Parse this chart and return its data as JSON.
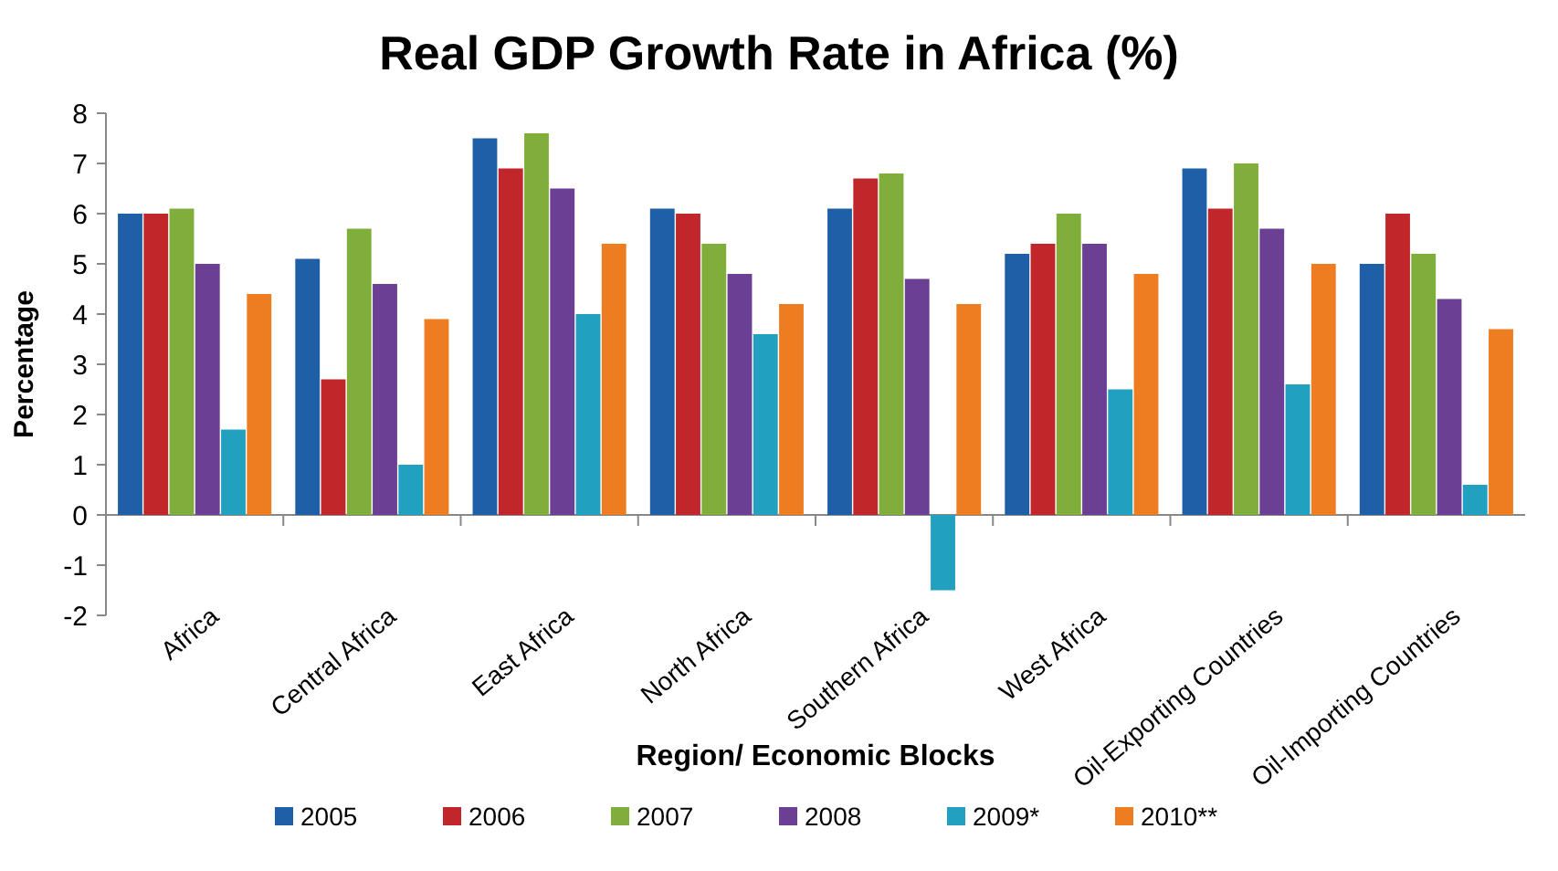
{
  "chart_data": {
    "type": "bar",
    "title": "Real GDP Growth Rate in Africa (%)",
    "xlabel": "Region/ Economic Blocks",
    "ylabel": "Percentage",
    "categories": [
      "Africa",
      "Central Africa",
      "East Africa",
      "North Africa",
      "Southern Africa",
      "West Africa",
      "Oil-Exporting Countries",
      "Oil-Importing Countries"
    ],
    "series": [
      {
        "name": "2005",
        "color": "#1f5fa8",
        "values": [
          6,
          5.1,
          7.5,
          6.1,
          6.1,
          5.2,
          6.9,
          5
        ]
      },
      {
        "name": "2006",
        "color": "#c0262a",
        "values": [
          6,
          2.7,
          6.9,
          6,
          6.7,
          5.4,
          6.1,
          6
        ]
      },
      {
        "name": "2007",
        "color": "#7fae3a",
        "values": [
          6.1,
          5.7,
          7.6,
          5.4,
          6.8,
          6,
          7,
          5.2
        ]
      },
      {
        "name": "2008",
        "color": "#6a3f94",
        "values": [
          5,
          4.6,
          6.5,
          4.8,
          4.7,
          5.4,
          5.7,
          4.3
        ]
      },
      {
        "name": "2009*",
        "color": "#22a0c0",
        "values": [
          1.7,
          1,
          4,
          3.6,
          -1.5,
          2.5,
          2.6,
          0.6
        ]
      },
      {
        "name": "2010**",
        "color": "#ee7d22",
        "values": [
          4.4,
          3.9,
          5.4,
          4.2,
          4.2,
          4.8,
          5,
          3.7
        ]
      }
    ],
    "ylim": [
      -2,
      8
    ],
    "yticks": [
      -2,
      -1,
      0,
      1,
      2,
      3,
      4,
      5,
      6,
      7,
      8
    ],
    "legend": "bottom"
  }
}
